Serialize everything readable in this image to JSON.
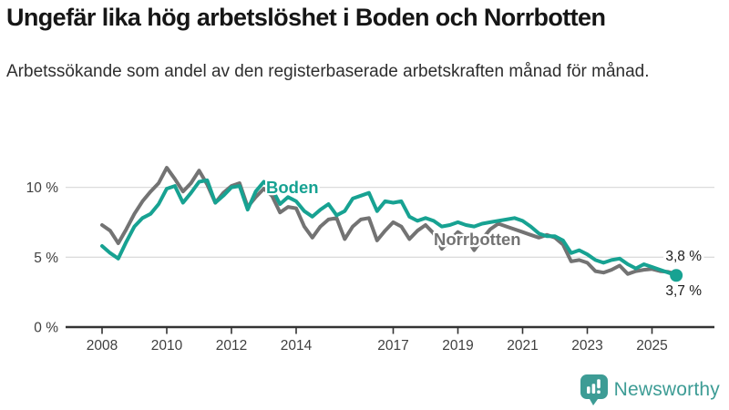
{
  "header": {
    "title": "Ungefär lika hög arbetslöshet i Boden och Norrbotten",
    "subtitle": "Arbetssökande som andel av den registerbaserade arbetskraften månad för månad."
  },
  "chart_data": {
    "type": "line",
    "title": "Ungefär lika hög arbetslöshet i Boden och Norrbotten",
    "subtitle": "Arbetssökande som andel av den registerbaserade arbetskraften månad för månad.",
    "unit": "%",
    "x_start": 2008,
    "x_step": 0.25,
    "x_end": 2025.75,
    "x_axis_ticks": [
      2008,
      2010,
      2012,
      2014,
      2017,
      2019,
      2021,
      2023,
      2025
    ],
    "x_axis_tick_labels": [
      "2008",
      "2010",
      "2012",
      "2014",
      "2017",
      "2019",
      "2021",
      "2023",
      "2025"
    ],
    "y_axis_ticks": [
      0,
      5,
      10
    ],
    "y_axis_tick_labels": [
      "0 %",
      "5 %",
      "10 %"
    ],
    "ylim": [
      0,
      12
    ],
    "grid": "horizontal-light",
    "legend": "inline-series-labels",
    "series": [
      {
        "name": "Norrbotten",
        "color": "#737373",
        "end_value": 3.8,
        "end_label": "3,8 %",
        "end_dot": false,
        "values": [
          7.3,
          6.9,
          6.0,
          7.0,
          8.1,
          9.0,
          9.7,
          10.3,
          11.4,
          10.6,
          9.7,
          10.3,
          11.2,
          10.2,
          8.9,
          9.6,
          10.1,
          10.3,
          8.6,
          9.3,
          9.9,
          9.4,
          8.2,
          8.6,
          8.5,
          7.2,
          6.4,
          7.2,
          7.7,
          7.8,
          6.3,
          7.2,
          7.7,
          7.8,
          6.2,
          6.9,
          7.5,
          7.2,
          6.3,
          6.9,
          7.3,
          6.7,
          5.6,
          6.2,
          6.8,
          6.4,
          5.5,
          6.3,
          7.0,
          7.4,
          7.2,
          7.0,
          6.8,
          6.6,
          6.4,
          6.6,
          6.4,
          5.9,
          4.7,
          4.8,
          4.6,
          4.0,
          3.9,
          4.1,
          4.4,
          3.8,
          4.0,
          4.1,
          4.15,
          4.0,
          3.95,
          3.8
        ]
      },
      {
        "name": "Boden",
        "color": "#17a292",
        "end_value": 3.7,
        "end_label": "3,7 %",
        "end_dot": true,
        "values": [
          5.8,
          5.3,
          4.9,
          6.1,
          7.2,
          7.8,
          8.1,
          8.8,
          9.9,
          10.1,
          8.9,
          9.6,
          10.4,
          10.5,
          8.9,
          9.4,
          10.0,
          10.1,
          8.4,
          9.7,
          10.4,
          9.9,
          8.8,
          9.3,
          9.0,
          8.3,
          7.9,
          8.4,
          8.8,
          8.0,
          8.3,
          9.2,
          9.4,
          9.6,
          8.3,
          9.0,
          8.9,
          9.0,
          7.9,
          7.6,
          7.8,
          7.6,
          7.2,
          7.3,
          7.5,
          7.3,
          7.2,
          7.4,
          7.5,
          7.6,
          7.7,
          7.8,
          7.6,
          7.2,
          6.7,
          6.5,
          6.5,
          6.2,
          5.3,
          5.5,
          5.2,
          4.8,
          4.6,
          4.8,
          4.9,
          4.5,
          4.2,
          4.5,
          4.3,
          4.1,
          3.9,
          3.7
        ]
      }
    ]
  },
  "colors": {
    "boden": "#17a292",
    "norrbotten": "#737373",
    "brand": "#3d9c95",
    "grid": "#dcdcdc",
    "axis": "#333333",
    "text": "#1a1a1a"
  },
  "footer": {
    "brand": "Newsworthy"
  }
}
